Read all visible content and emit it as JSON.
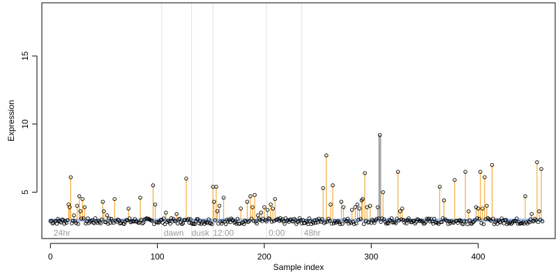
{
  "chart_data": {
    "type": "scatter",
    "xlabel": "Sample index",
    "ylabel": "Expression",
    "xlim": [
      -8,
      472
    ],
    "ylim": [
      1.6,
      18.9
    ],
    "x_ticks": [
      0,
      100,
      200,
      300,
      400
    ],
    "y_ticks": [
      5,
      10,
      15
    ],
    "grid": false,
    "n_samples": 461,
    "baseline": 2.95,
    "region_boundaries": [
      104,
      132,
      152,
      202,
      235
    ],
    "region_labels": [
      {
        "text": "24hr",
        "x": 3
      },
      {
        "text": "dawn",
        "x": 106
      },
      {
        "text": "dusk",
        "x": 132
      },
      {
        "text": "12:00",
        "x": 152
      },
      {
        "text": "0:00",
        "x": 204
      },
      {
        "text": "48hr",
        "x": 237
      }
    ],
    "highlight_index": 308,
    "colors": {
      "stem": "#f39c12",
      "baseline_marker": "#7ba7e8",
      "highlight": "#a6a6a6",
      "point": "#000000",
      "region_line": "#e0e0e0",
      "region_text": "#9a9a9a"
    },
    "peaks": [
      {
        "x": 17,
        "y": 4.1
      },
      {
        "x": 18,
        "y": 3.9
      },
      {
        "x": 19,
        "y": 6.1
      },
      {
        "x": 22,
        "y": 3.3
      },
      {
        "x": 25,
        "y": 4.0
      },
      {
        "x": 27,
        "y": 4.7
      },
      {
        "x": 28,
        "y": 3.6
      },
      {
        "x": 30,
        "y": 4.5
      },
      {
        "x": 32,
        "y": 3.9
      },
      {
        "x": 49,
        "y": 4.3
      },
      {
        "x": 50,
        "y": 3.6
      },
      {
        "x": 53,
        "y": 3.3
      },
      {
        "x": 60,
        "y": 4.5
      },
      {
        "x": 73,
        "y": 3.8
      },
      {
        "x": 84,
        "y": 4.6
      },
      {
        "x": 96,
        "y": 5.5
      },
      {
        "x": 98,
        "y": 4.1
      },
      {
        "x": 108,
        "y": 3.5
      },
      {
        "x": 118,
        "y": 3.4
      },
      {
        "x": 127,
        "y": 6.0
      },
      {
        "x": 152,
        "y": 5.4
      },
      {
        "x": 153,
        "y": 4.3
      },
      {
        "x": 155,
        "y": 5.4
      },
      {
        "x": 156,
        "y": 3.6
      },
      {
        "x": 158,
        "y": 4.0
      },
      {
        "x": 162,
        "y": 4.6
      },
      {
        "x": 178,
        "y": 3.8
      },
      {
        "x": 184,
        "y": 4.3
      },
      {
        "x": 187,
        "y": 4.7
      },
      {
        "x": 189,
        "y": 3.9
      },
      {
        "x": 191,
        "y": 4.8
      },
      {
        "x": 194,
        "y": 3.3
      },
      {
        "x": 197,
        "y": 3.5
      },
      {
        "x": 200,
        "y": 3.9
      },
      {
        "x": 203,
        "y": 3.7
      },
      {
        "x": 206,
        "y": 4.1
      },
      {
        "x": 208,
        "y": 3.8
      },
      {
        "x": 210,
        "y": 4.5
      },
      {
        "x": 255,
        "y": 5.3
      },
      {
        "x": 258,
        "y": 7.7
      },
      {
        "x": 262,
        "y": 4.1
      },
      {
        "x": 264,
        "y": 5.5
      },
      {
        "x": 272,
        "y": 4.3
      },
      {
        "x": 274,
        "y": 3.9
      },
      {
        "x": 282,
        "y": 3.7
      },
      {
        "x": 285,
        "y": 3.9
      },
      {
        "x": 287,
        "y": 4.1
      },
      {
        "x": 289,
        "y": 3.8
      },
      {
        "x": 291,
        "y": 4.4
      },
      {
        "x": 292,
        "y": 4.5
      },
      {
        "x": 294,
        "y": 6.4
      },
      {
        "x": 296,
        "y": 3.9
      },
      {
        "x": 299,
        "y": 4.0
      },
      {
        "x": 306,
        "y": 3.9
      },
      {
        "x": 311,
        "y": 5.0
      },
      {
        "x": 325,
        "y": 6.5
      },
      {
        "x": 327,
        "y": 3.6
      },
      {
        "x": 329,
        "y": 3.8
      },
      {
        "x": 364,
        "y": 5.4
      },
      {
        "x": 368,
        "y": 4.4
      },
      {
        "x": 378,
        "y": 5.9
      },
      {
        "x": 388,
        "y": 6.5
      },
      {
        "x": 391,
        "y": 3.6
      },
      {
        "x": 398,
        "y": 3.9
      },
      {
        "x": 400,
        "y": 3.8
      },
      {
        "x": 402,
        "y": 6.5
      },
      {
        "x": 404,
        "y": 3.8
      },
      {
        "x": 406,
        "y": 6.1
      },
      {
        "x": 408,
        "y": 4.0
      },
      {
        "x": 413,
        "y": 7.0
      },
      {
        "x": 444,
        "y": 4.7
      },
      {
        "x": 450,
        "y": 3.4
      },
      {
        "x": 455,
        "y": 7.2
      },
      {
        "x": 457,
        "y": 3.6
      },
      {
        "x": 459,
        "y": 6.7
      }
    ],
    "highlight_point": {
      "x": 308,
      "y": 9.2
    }
  }
}
